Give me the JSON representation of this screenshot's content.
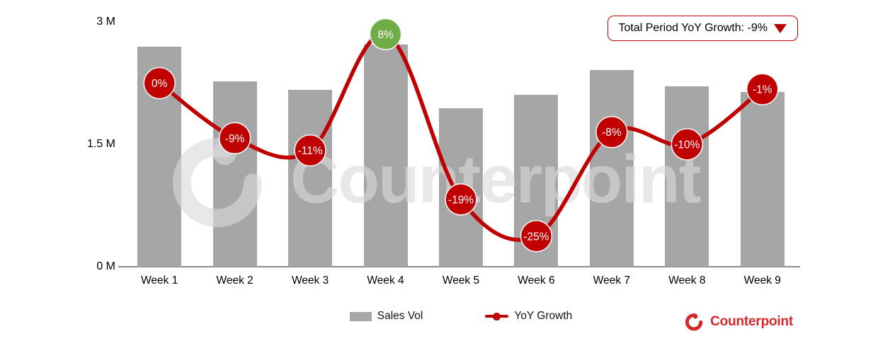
{
  "badge": {
    "label": "Total Period YoY Growth: -9%",
    "trend": "down",
    "border_color": "#C00000"
  },
  "chart_data": {
    "type": "combo (bar + line)",
    "title": "",
    "categories": [
      "Week 1",
      "Week 2",
      "Week 3",
      "Week 4",
      "Week 5",
      "Week 6",
      "Week 7",
      "Week 8",
      "Week 9"
    ],
    "series": [
      {
        "name": "Sales Vol",
        "chart_type": "bar",
        "unit": "millions of units",
        "axis": "left",
        "values": [
          2.7,
          2.27,
          2.17,
          2.72,
          1.94,
          2.11,
          2.41,
          2.21,
          2.14
        ],
        "color": "#A6A6A6"
      },
      {
        "name": "YoY Growth",
        "chart_type": "line",
        "unit": "percent",
        "axis": "right-hidden",
        "values": [
          0,
          -9,
          -11,
          8,
          -19,
          -25,
          -8,
          -10,
          -1
        ],
        "labels": [
          "0%",
          "-9%",
          "-11%",
          "8%",
          "-19%",
          "-25%",
          "-8%",
          "-10%",
          "-1%"
        ],
        "color": "#C00000",
        "positive_marker_color": "#70AD47",
        "marker_text_color": "#FFFFFF"
      }
    ],
    "xlabel": "",
    "ylabel": "",
    "yticks": [
      "3 M",
      "1.5 M",
      "0 M"
    ],
    "ylim": [
      0,
      3
    ],
    "y2lim": [
      -30,
      10
    ],
    "grid": false,
    "legend_position": "bottom"
  },
  "legend": {
    "items": [
      {
        "label": "Sales Vol",
        "marker": "bar-swatch"
      },
      {
        "label": "YoY Growth",
        "marker": "line-dot-swatch"
      }
    ]
  },
  "watermark": {
    "text": "Counterpoint"
  },
  "brand": {
    "text": "Counterpoint"
  },
  "colors": {
    "bar": "#A6A6A6",
    "line_red": "#C00000",
    "positive_green": "#70AD47",
    "axis_line": "#8C8C8C",
    "brand_red": "#D7282D",
    "watermark_gray": "rgba(218,218,218,0.62)"
  }
}
